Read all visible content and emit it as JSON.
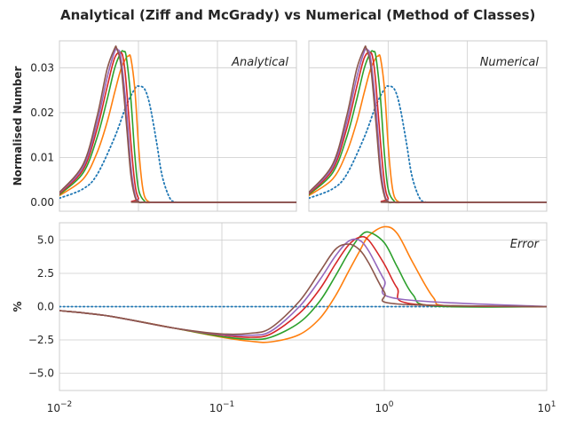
{
  "figure": {
    "title": "Analytical (Ziff and McGrady) vs Numerical (Method of Classes)"
  },
  "chart_data": [
    {
      "type": "line",
      "panel": "analytical",
      "annotation": "Analytical",
      "ylabel": "Normalised Number",
      "xscale": "log",
      "xlim": [
        0.01,
        10
      ],
      "ylim": [
        -0.002,
        0.036
      ],
      "yticks": [
        0.0,
        0.01,
        0.02,
        0.03
      ],
      "ytick_labels": [
        "0.00",
        "0.01",
        "0.02",
        "0.03"
      ],
      "grid": true,
      "series": [
        {
          "color": "#1f77b4",
          "style": "dotted",
          "x": [
            0.01,
            0.02,
            0.03,
            0.05,
            0.07,
            0.09,
            0.1,
            0.12,
            0.14,
            0.17,
            0.2,
            0.25,
            0.3
          ],
          "y": [
            0.0009,
            0.003,
            0.0062,
            0.0145,
            0.0215,
            0.0253,
            0.0259,
            0.0252,
            0.0215,
            0.0133,
            0.0058,
            0.0009,
            0.0
          ]
        },
        {
          "color": "#ff7f0e",
          "style": "solid",
          "x": [
            0.01,
            0.02,
            0.03,
            0.04,
            0.05,
            0.06,
            0.07,
            0.075,
            0.08,
            0.09,
            0.1,
            0.11,
            0.12,
            0.14,
            0.18,
            10
          ],
          "y": [
            0.0015,
            0.0052,
            0.0111,
            0.0178,
            0.0245,
            0.0297,
            0.0322,
            0.0326,
            0.0322,
            0.0252,
            0.0128,
            0.0048,
            0.0012,
            0.0,
            0.0,
            0.0
          ]
        },
        {
          "color": "#2ca02c",
          "style": "solid",
          "x": [
            0.01,
            0.02,
            0.03,
            0.04,
            0.05,
            0.06,
            0.065,
            0.07,
            0.08,
            0.09,
            0.1,
            0.12,
            0.15,
            10
          ],
          "y": [
            0.0017,
            0.0066,
            0.0145,
            0.0228,
            0.0299,
            0.0334,
            0.0336,
            0.0325,
            0.0232,
            0.0105,
            0.003,
            0.0002,
            0.0,
            0.0
          ]
        },
        {
          "color": "#d62728",
          "style": "solid",
          "x": [
            0.01,
            0.02,
            0.03,
            0.04,
            0.05,
            0.06,
            0.065,
            0.07,
            0.08,
            0.09,
            0.1,
            0.12,
            10
          ],
          "y": [
            0.0019,
            0.0073,
            0.0164,
            0.0256,
            0.0322,
            0.0334,
            0.0315,
            0.0265,
            0.0135,
            0.0043,
            0.0009,
            0.0,
            0.0
          ]
        },
        {
          "color": "#9467bd",
          "style": "solid",
          "x": [
            0.01,
            0.02,
            0.03,
            0.04,
            0.05,
            0.055,
            0.06,
            0.07,
            0.08,
            0.09,
            0.1,
            0.12,
            10
          ],
          "y": [
            0.0021,
            0.0079,
            0.0178,
            0.0277,
            0.0336,
            0.034,
            0.0322,
            0.0212,
            0.0082,
            0.0019,
            0.0003,
            0.0,
            0.0
          ]
        },
        {
          "color": "#8c564b",
          "style": "solid",
          "x": [
            0.01,
            0.02,
            0.03,
            0.04,
            0.05,
            0.053,
            0.06,
            0.07,
            0.08,
            0.09,
            0.1,
            0.12,
            10
          ],
          "y": [
            0.0022,
            0.0085,
            0.0192,
            0.0296,
            0.0343,
            0.0343,
            0.0306,
            0.018,
            0.0062,
            0.0013,
            0.0002,
            0.0,
            0.0
          ]
        }
      ]
    },
    {
      "type": "line",
      "panel": "numerical",
      "annotation": "Numerical",
      "xscale": "log",
      "xlim": [
        0.01,
        10
      ],
      "ylim": [
        -0.002,
        0.036
      ],
      "grid": true,
      "series": [
        {
          "color": "#1f77b4",
          "style": "dotted",
          "x": [
            0.01,
            0.02,
            0.03,
            0.05,
            0.07,
            0.09,
            0.1,
            0.12,
            0.14,
            0.17,
            0.2,
            0.25,
            0.3
          ],
          "y": [
            0.0009,
            0.003,
            0.0062,
            0.0145,
            0.0215,
            0.0253,
            0.0259,
            0.0252,
            0.0215,
            0.0133,
            0.0058,
            0.0009,
            0.0
          ]
        },
        {
          "color": "#ff7f0e",
          "style": "solid",
          "x": [
            0.01,
            0.02,
            0.03,
            0.04,
            0.05,
            0.06,
            0.07,
            0.075,
            0.08,
            0.09,
            0.1,
            0.11,
            0.12,
            0.14,
            0.18,
            10
          ],
          "y": [
            0.0015,
            0.0052,
            0.0111,
            0.0178,
            0.0245,
            0.0297,
            0.0322,
            0.0326,
            0.0322,
            0.0252,
            0.0128,
            0.0048,
            0.0012,
            0.0,
            0.0,
            0.0
          ]
        },
        {
          "color": "#2ca02c",
          "style": "solid",
          "x": [
            0.01,
            0.02,
            0.03,
            0.04,
            0.05,
            0.06,
            0.065,
            0.07,
            0.08,
            0.09,
            0.1,
            0.12,
            0.15,
            10
          ],
          "y": [
            0.0017,
            0.0066,
            0.0145,
            0.0228,
            0.0299,
            0.0334,
            0.0336,
            0.0325,
            0.0232,
            0.0105,
            0.003,
            0.0002,
            0.0,
            0.0
          ]
        },
        {
          "color": "#d62728",
          "style": "solid",
          "x": [
            0.01,
            0.02,
            0.03,
            0.04,
            0.05,
            0.06,
            0.065,
            0.07,
            0.08,
            0.09,
            0.1,
            0.12,
            10
          ],
          "y": [
            0.0019,
            0.0073,
            0.0164,
            0.0256,
            0.0322,
            0.0334,
            0.0315,
            0.0265,
            0.0135,
            0.0043,
            0.0009,
            0.0,
            0.0
          ]
        },
        {
          "color": "#9467bd",
          "style": "solid",
          "x": [
            0.01,
            0.02,
            0.03,
            0.04,
            0.05,
            0.055,
            0.06,
            0.07,
            0.08,
            0.09,
            0.1,
            0.12,
            10
          ],
          "y": [
            0.0021,
            0.0079,
            0.0178,
            0.0277,
            0.0336,
            0.034,
            0.0322,
            0.0212,
            0.0082,
            0.0019,
            0.0003,
            0.0,
            0.0
          ]
        },
        {
          "color": "#8c564b",
          "style": "solid",
          "x": [
            0.01,
            0.02,
            0.03,
            0.04,
            0.05,
            0.053,
            0.06,
            0.07,
            0.08,
            0.09,
            0.1,
            0.12,
            10
          ],
          "y": [
            0.0022,
            0.0085,
            0.0192,
            0.0296,
            0.0343,
            0.0343,
            0.0306,
            0.018,
            0.0062,
            0.0013,
            0.0002,
            0.0,
            0.0
          ]
        }
      ]
    },
    {
      "type": "line",
      "panel": "error",
      "annotation": "Error",
      "ylabel": "%",
      "xscale": "log",
      "xlim": [
        0.01,
        10
      ],
      "xtick_labels": [
        {
          "base": "10",
          "exp": "−2"
        },
        {
          "base": "10",
          "exp": "−1"
        },
        {
          "base": "10",
          "exp": "0"
        },
        {
          "base": "10",
          "exp": "1"
        }
      ],
      "ylim": [
        -6.3,
        6.3
      ],
      "yticks": [
        -5.0,
        -2.5,
        0.0,
        2.5,
        5.0
      ],
      "ytick_labels": [
        "−5.0",
        "−2.5",
        "0.0",
        "2.5",
        "5.0"
      ],
      "grid": true,
      "series": [
        {
          "color": "#1f77b4",
          "style": "dotted",
          "x": [
            0.01,
            10
          ],
          "y": [
            0.0,
            0.0
          ]
        },
        {
          "color": "#ff7f0e",
          "style": "solid",
          "x": [
            0.01,
            0.02,
            0.05,
            0.1,
            0.15,
            0.2,
            0.3,
            0.4,
            0.5,
            0.6,
            0.7,
            0.8,
            1.0,
            1.2,
            1.5,
            2.0,
            2.5,
            10
          ],
          "y": [
            -0.3,
            -0.7,
            -1.6,
            -2.3,
            -2.6,
            -2.65,
            -2.1,
            -0.9,
            0.8,
            2.6,
            4.1,
            5.3,
            6.0,
            5.5,
            3.3,
            0.7,
            0.05,
            0.0
          ]
        },
        {
          "color": "#2ca02c",
          "style": "solid",
          "x": [
            0.01,
            0.02,
            0.05,
            0.1,
            0.15,
            0.2,
            0.3,
            0.4,
            0.5,
            0.6,
            0.7,
            0.8,
            1.0,
            1.2,
            1.5,
            2.0,
            10
          ],
          "y": [
            -0.3,
            -0.7,
            -1.6,
            -2.25,
            -2.45,
            -2.3,
            -1.2,
            0.4,
            2.3,
            4.0,
            5.2,
            5.6,
            4.8,
            3.0,
            0.9,
            0.05,
            0.0
          ]
        },
        {
          "color": "#d62728",
          "style": "solid",
          "x": [
            0.01,
            0.02,
            0.05,
            0.1,
            0.15,
            0.2,
            0.3,
            0.4,
            0.5,
            0.6,
            0.7,
            0.8,
            1.0,
            1.2,
            1.5,
            10
          ],
          "y": [
            -0.3,
            -0.7,
            -1.6,
            -2.15,
            -2.3,
            -2.05,
            -0.5,
            1.3,
            3.2,
            4.6,
            5.2,
            5.0,
            3.2,
            1.4,
            0.2,
            0.0
          ]
        },
        {
          "color": "#9467bd",
          "style": "solid",
          "x": [
            0.01,
            0.02,
            0.05,
            0.1,
            0.15,
            0.2,
            0.3,
            0.4,
            0.5,
            0.6,
            0.7,
            0.8,
            1.0,
            1.2,
            10
          ],
          "y": [
            -0.3,
            -0.7,
            -1.6,
            -2.1,
            -2.15,
            -1.85,
            0.0,
            2.0,
            3.8,
            4.9,
            5.0,
            4.2,
            2.0,
            0.6,
            0.0
          ]
        },
        {
          "color": "#8c564b",
          "style": "solid",
          "x": [
            0.01,
            0.02,
            0.05,
            0.1,
            0.15,
            0.2,
            0.3,
            0.4,
            0.5,
            0.6,
            0.7,
            0.8,
            1.0,
            1.2,
            10
          ],
          "y": [
            -0.3,
            -0.7,
            -1.6,
            -2.05,
            -2.0,
            -1.6,
            0.4,
            2.6,
            4.3,
            4.7,
            4.3,
            3.3,
            1.1,
            0.2,
            0.0
          ]
        }
      ]
    }
  ]
}
